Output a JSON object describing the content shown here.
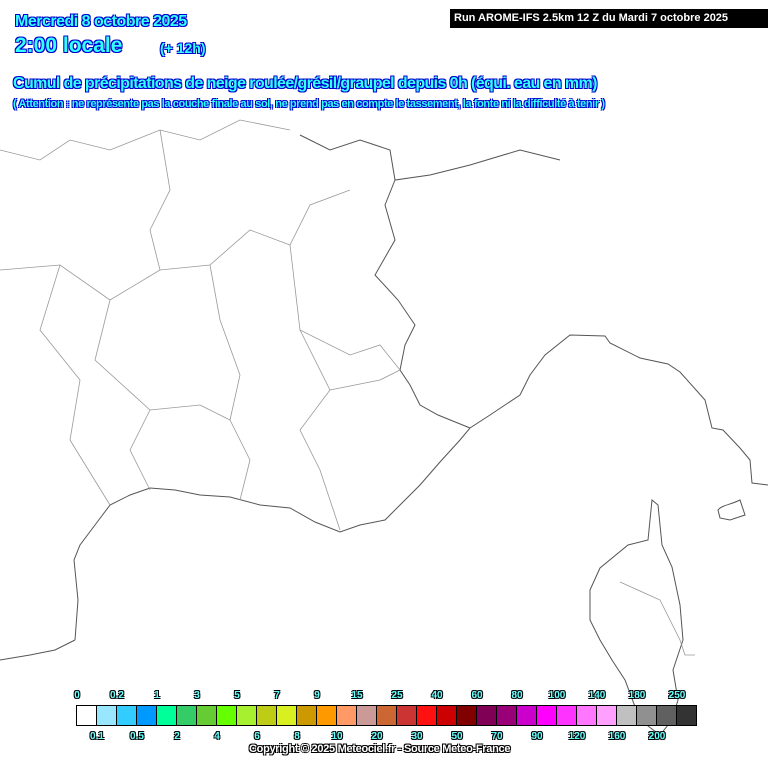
{
  "header": {
    "date": "Mercredi 8 octobre 2025",
    "hour": "2:00 locale",
    "lead": "(+ 12h)",
    "title": "Cumul de précipitations de neige roulée/grésil/graupel depuis 0h (équi. eau en mm)",
    "warning": "( Attention : ne représente pas la couche finale au sol, ne prend pas en compte le tassement, la fonte ni la difficulté à tenir )",
    "run": "Run AROME-IFS 2.5km 12 Z du Mardi 7 octobre 2025"
  },
  "legend": {
    "unit": "mm",
    "thresholds": [
      "0",
      "0.1",
      "0.2",
      "0.5",
      "1",
      "2",
      "3",
      "4",
      "5",
      "6",
      "7",
      "8",
      "9",
      "10",
      "15",
      "20",
      "25",
      "30",
      "40",
      "50",
      "60",
      "70",
      "80",
      "90",
      "100",
      "120",
      "140",
      "160",
      "180",
      "200",
      "250"
    ],
    "colors": [
      "#ffffff",
      "#99e6ff",
      "#33ccff",
      "#0099ff",
      "#00ff99",
      "#33cc66",
      "#66cc33",
      "#66ff00",
      "#a6f030",
      "#bfcc16",
      "#d9f020",
      "#cc9900",
      "#ff9900",
      "#ff9966",
      "#cc9999",
      "#cc6633",
      "#cc3333",
      "#ff1111",
      "#cc0000",
      "#800000",
      "#800055",
      "#990077",
      "#cc00cc",
      "#ff00ff",
      "#ff33ff",
      "#ff77ff",
      "#ffa0ff",
      "#c0c0c0",
      "#909090",
      "#606060",
      "#333333"
    ]
  },
  "copyright": "Copyright © 2025 Meteociel.fr - Source Meteo-France",
  "map": {
    "region": "Sud-Est France / Corse",
    "precipitation_shown": "none"
  }
}
